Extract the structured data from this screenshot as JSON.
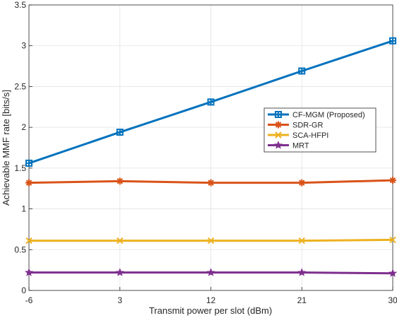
{
  "chart_data": {
    "type": "line",
    "xlabel": "Transmit power per slot (dBm)",
    "ylabel": "Achievable MMF rate [bits/s]",
    "x": [
      -6,
      3,
      12,
      21,
      30
    ],
    "xticks": [
      "-6",
      "3",
      "12",
      "21",
      "30"
    ],
    "yticks": [
      "0",
      "0.5",
      "1",
      "1.5",
      "2",
      "2.5",
      "3",
      "3.5"
    ],
    "xlim": [
      -6,
      30
    ],
    "ylim": [
      0,
      3.5
    ],
    "grid": true,
    "legend_position": "right-center",
    "series": [
      {
        "name": "CF-MGM (Proposed)",
        "color": "#0072BD",
        "marker": "plus-square",
        "values": [
          1.56,
          1.94,
          2.31,
          2.69,
          3.06
        ]
      },
      {
        "name": "SDR-GR",
        "color": "#D95319",
        "marker": "asterisk",
        "values": [
          1.32,
          1.34,
          1.32,
          1.32,
          1.35
        ]
      },
      {
        "name": "SCA-HFPI",
        "color": "#EDB120",
        "marker": "x",
        "values": [
          0.61,
          0.61,
          0.61,
          0.61,
          0.62
        ]
      },
      {
        "name": "MRT",
        "color": "#7E2F8E",
        "marker": "star",
        "values": [
          0.22,
          0.22,
          0.22,
          0.22,
          0.21
        ]
      }
    ]
  }
}
